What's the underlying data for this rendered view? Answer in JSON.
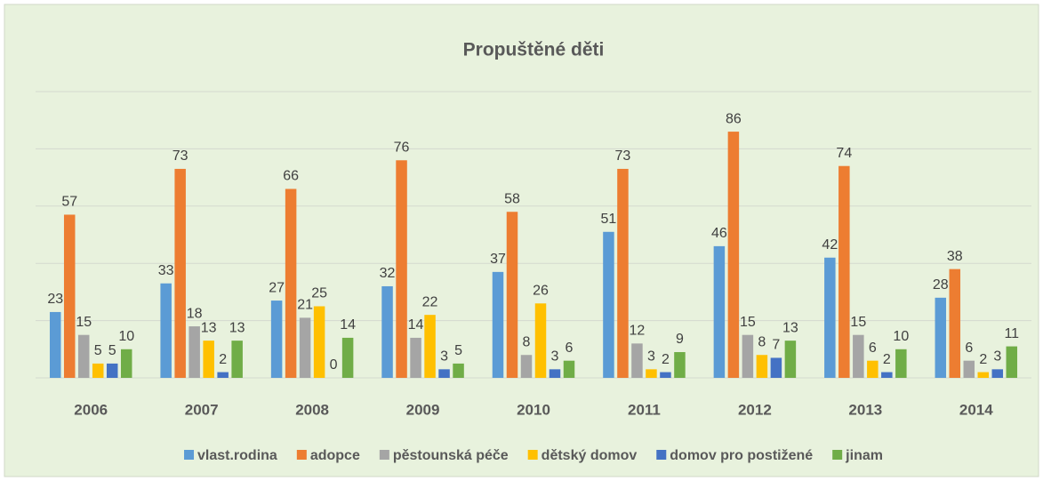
{
  "chart_data": {
    "type": "bar",
    "title": "Propuštěné děti",
    "categories": [
      "2006",
      "2007",
      "2008",
      "2009",
      "2010",
      "2011",
      "2012",
      "2013",
      "2014"
    ],
    "series": [
      {
        "name": "vlast.rodina",
        "color": "#5b9bd5",
        "values": [
          23,
          33,
          27,
          32,
          37,
          51,
          46,
          42,
          28
        ]
      },
      {
        "name": "adopce",
        "color": "#ed7d31",
        "values": [
          57,
          73,
          66,
          76,
          58,
          73,
          86,
          74,
          38
        ]
      },
      {
        "name": "pěstounská péče",
        "color": "#a5a5a5",
        "values": [
          15,
          18,
          21,
          14,
          8,
          12,
          15,
          15,
          6
        ]
      },
      {
        "name": "dětský domov",
        "color": "#ffc000",
        "values": [
          5,
          13,
          25,
          22,
          26,
          3,
          8,
          6,
          2
        ]
      },
      {
        "name": "domov pro postižené",
        "color": "#4472c4",
        "values": [
          5,
          2,
          0,
          3,
          3,
          2,
          7,
          2,
          3
        ]
      },
      {
        "name": "jinam",
        "color": "#70ad47",
        "values": [
          10,
          13,
          14,
          5,
          6,
          9,
          13,
          10,
          11
        ]
      }
    ],
    "ylim": [
      0,
      100
    ],
    "yticks": [
      0,
      20,
      40,
      60,
      80,
      100
    ],
    "grid": true,
    "legend": "bottom"
  }
}
